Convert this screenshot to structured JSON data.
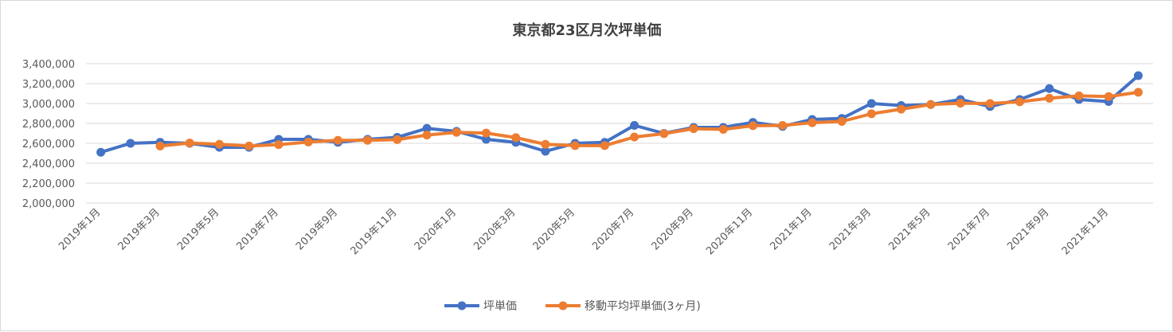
{
  "chart_data": {
    "type": "line",
    "title": "東京都23区月次坪単価",
    "ylim": [
      2000000,
      3400000
    ],
    "y_ticks": [
      "2,000,000",
      "2,200,000",
      "2,400,000",
      "2,600,000",
      "2,800,000",
      "3,000,000",
      "3,200,000",
      "3,400,000"
    ],
    "y_tick_values": [
      2000000,
      2200000,
      2400000,
      2600000,
      2800000,
      3000000,
      3200000,
      3400000
    ],
    "grid": true,
    "legend_position": "bottom",
    "x": [
      "2019年1月",
      "2019年2月",
      "2019年3月",
      "2019年4月",
      "2019年5月",
      "2019年6月",
      "2019年7月",
      "2019年8月",
      "2019年9月",
      "2019年10月",
      "2019年11月",
      "2019年12月",
      "2020年1月",
      "2020年2月",
      "2020年3月",
      "2020年4月",
      "2020年5月",
      "2020年6月",
      "2020年7月",
      "2020年8月",
      "2020年9月",
      "2020年10月",
      "2020年11月",
      "2020年12月",
      "2021年1月",
      "2021年2月",
      "2021年3月",
      "2021年4月",
      "2021年5月",
      "2021年6月",
      "2021年7月",
      "2021年8月",
      "2021年9月",
      "2021年10月",
      "2021年11月",
      "2021年12月"
    ],
    "x_tick_labels": [
      "2019年1月",
      "2019年3月",
      "2019年5月",
      "2019年7月",
      "2019年9月",
      "2019年11月",
      "2020年1月",
      "2020年3月",
      "2020年5月",
      "2020年7月",
      "2020年9月",
      "2020年11月",
      "2021年1月",
      "2021年3月",
      "2021年5月",
      "2021年7月",
      "2021年9月",
      "2021年11月"
    ],
    "series": [
      {
        "name": "坪単価",
        "color": "#4472c4",
        "values": [
          2510000,
          2600000,
          2610000,
          2600000,
          2560000,
          2560000,
          2640000,
          2640000,
          2610000,
          2640000,
          2660000,
          2750000,
          2720000,
          2640000,
          2610000,
          2520000,
          2600000,
          2610000,
          2780000,
          2700000,
          2760000,
          2760000,
          2810000,
          2770000,
          2840000,
          2850000,
          3000000,
          2980000,
          2990000,
          3040000,
          2970000,
          3040000,
          3150000,
          3040000,
          3020000,
          3280000
        ]
      },
      {
        "name": "移動平均坪単価(3ヶ月)",
        "color": "#ed7d31",
        "values": [
          null,
          null,
          2573000,
          2603000,
          2590000,
          2573000,
          2587000,
          2613000,
          2630000,
          2630000,
          2637000,
          2683000,
          2710000,
          2703000,
          2657000,
          2590000,
          2577000,
          2577000,
          2663000,
          2697000,
          2747000,
          2740000,
          2777000,
          2780000,
          2807000,
          2820000,
          2897000,
          2943000,
          2990000,
          3003000,
          3000000,
          3017000,
          3053000,
          3077000,
          3070000,
          3113000
        ]
      }
    ]
  }
}
